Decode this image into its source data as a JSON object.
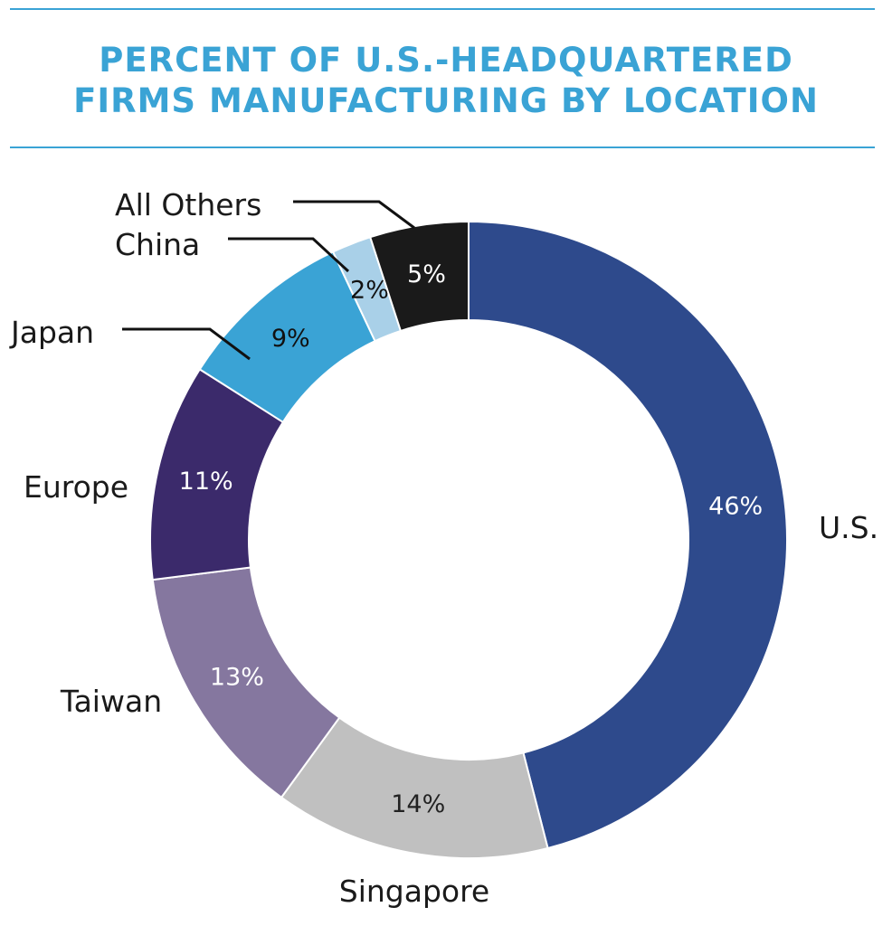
{
  "header": {
    "title_line1": "PERCENT OF U.S.-HEADQUARTERED",
    "title_line2": "FIRMS MANUFACTURING BY LOCATION"
  },
  "chart_data": {
    "type": "pie",
    "title": "PERCENT OF U.S.-HEADQUARTERED FIRMS MANUFACTURING BY LOCATION",
    "donut": true,
    "slices": [
      {
        "name": "U.S.",
        "value": 46,
        "label": "46%",
        "color": "#2e4a8c",
        "label_color": "#ffffff"
      },
      {
        "name": "Singapore",
        "value": 14,
        "label": "14%",
        "color": "#c0c0c0",
        "label_color": "#222222"
      },
      {
        "name": "Taiwan",
        "value": 13,
        "label": "13%",
        "color": "#85779f",
        "label_color": "#ffffff"
      },
      {
        "name": "Europe",
        "value": 11,
        "label": "11%",
        "color": "#3b2a6b",
        "label_color": "#ffffff"
      },
      {
        "name": "Japan",
        "value": 9,
        "label": "9%",
        "color": "#3aa3d5",
        "label_color": "#111111"
      },
      {
        "name": "China",
        "value": 2,
        "label": "2%",
        "color": "#a9d0e8",
        "label_color": "#111111"
      },
      {
        "name": "All Others",
        "value": 5,
        "label": "5%",
        "color": "#1a1a1a",
        "label_color": "#ffffff"
      }
    ]
  }
}
